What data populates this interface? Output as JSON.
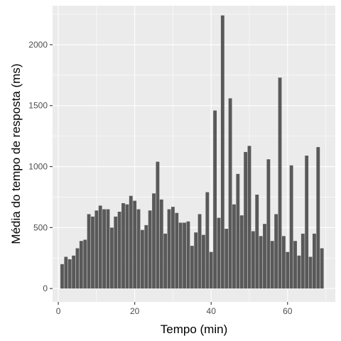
{
  "chart_data": {
    "type": "bar",
    "xlabel": "Tempo (min)",
    "ylabel": "Média do tempo de resposta (ms)",
    "xlim": [
      -1.5,
      72.5
    ],
    "ylim": [
      -110,
      2320
    ],
    "x_ticks": [
      {
        "value": 0,
        "label": "0"
      },
      {
        "value": 20,
        "label": "20"
      },
      {
        "value": 40,
        "label": "40"
      },
      {
        "value": 60,
        "label": "60"
      }
    ],
    "y_ticks": [
      {
        "value": 0,
        "label": "0"
      },
      {
        "value": 500,
        "label": "500"
      },
      {
        "value": 1000,
        "label": "1000"
      },
      {
        "value": 1500,
        "label": "1500"
      },
      {
        "value": 2000,
        "label": "2000"
      }
    ],
    "grid": true,
    "x": [
      1,
      2,
      3,
      4,
      5,
      6,
      7,
      8,
      9,
      10,
      11,
      12,
      13,
      14,
      15,
      16,
      17,
      18,
      19,
      20,
      21,
      22,
      23,
      24,
      25,
      26,
      27,
      28,
      29,
      30,
      31,
      32,
      33,
      34,
      35,
      36,
      37,
      38,
      39,
      40,
      41,
      42,
      43,
      44,
      45,
      46,
      47,
      48,
      49,
      50,
      51,
      52,
      53,
      54,
      55,
      56,
      57,
      58,
      59,
      60,
      61,
      62,
      63,
      64,
      65,
      66,
      67,
      68,
      69
    ],
    "values": [
      200,
      260,
      240,
      270,
      330,
      390,
      400,
      610,
      590,
      640,
      680,
      650,
      650,
      500,
      590,
      630,
      700,
      690,
      760,
      720,
      650,
      480,
      520,
      640,
      780,
      1040,
      730,
      450,
      650,
      670,
      620,
      540,
      540,
      550,
      350,
      460,
      610,
      440,
      790,
      300,
      1460,
      580,
      2240,
      490,
      1560,
      690,
      940,
      600,
      1120,
      1170,
      470,
      770,
      430,
      530,
      1060,
      390,
      610,
      1730,
      430,
      300,
      1010,
      390,
      270,
      450,
      1090,
      260,
      450,
      1160,
      330
    ],
    "colors": {
      "bar": "#595959",
      "panel": "#ebebeb",
      "grid_major": "#ffffff",
      "tick_label": "#4d4d4d"
    }
  }
}
